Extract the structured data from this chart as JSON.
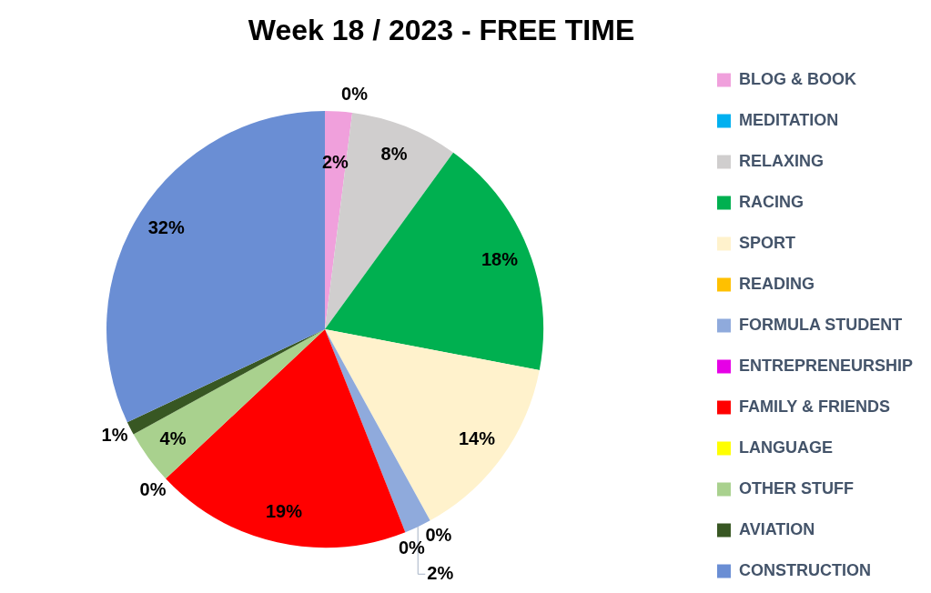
{
  "chart_data": {
    "type": "pie",
    "title": "Week 18 / 2023 - FREE TIME",
    "categories": [
      "BLOG & BOOK",
      "MEDITATION",
      "RELAXING",
      "RACING",
      "SPORT",
      "READING",
      "FORMULA STUDENT",
      "ENTREPRENEURSHIP",
      "FAMILY & FRIENDS",
      "LANGUAGE",
      "OTHER STUFF",
      "AVIATION",
      "CONSTRUCTION"
    ],
    "values": [
      2,
      0,
      8,
      18,
      14,
      0,
      2,
      0,
      19,
      0,
      4,
      1,
      32
    ],
    "colors": [
      "#f0a0dc",
      "#00b0f0",
      "#d0cece",
      "#00b050",
      "#fff2cc",
      "#ffc000",
      "#8faadc",
      "#e600e6",
      "#ff0000",
      "#ffff00",
      "#a9d18e",
      "#385723",
      "#6a8ed4"
    ],
    "value_labels": [
      "2%",
      "0%",
      "8%",
      "18%",
      "14%",
      "0%",
      "2%",
      "0%",
      "19%",
      "0%",
      "4%",
      "1%",
      "32%"
    ],
    "legend": "right"
  }
}
